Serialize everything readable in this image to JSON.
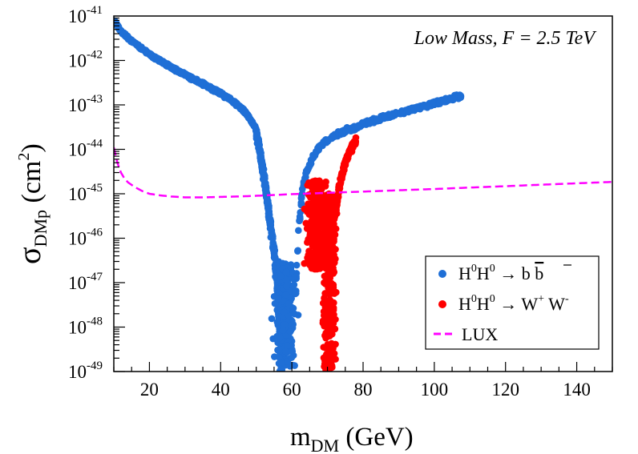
{
  "chart_data": {
    "type": "scatter",
    "xlabel": {
      "main": "m",
      "sub": "DM",
      "rest": " (GeV)"
    },
    "ylabel": {
      "main": "σ",
      "sub": "DMp",
      "rest1": " (cm",
      "sup": "2",
      "rest2": ")"
    },
    "xlim": [
      10,
      150
    ],
    "ylim": [
      1e-49,
      1e-41
    ],
    "y_scale": "log",
    "grid": false,
    "x_ticks": [
      "20",
      "40",
      "60",
      "80",
      "100",
      "120",
      "140"
    ],
    "x_tick_values": [
      20,
      40,
      60,
      80,
      100,
      120,
      140
    ],
    "y_tick_exponents": [
      "-49",
      "-48",
      "-47",
      "-46",
      "-45",
      "-44",
      "-43",
      "-42",
      "-41"
    ],
    "y_tick_base": "10",
    "annotation": "Low Mass, F = 2.5 TeV",
    "legend_position": "bottom-right",
    "legend": [
      {
        "label": "H⁰H⁰ → b b̄",
        "parts": [
          "H",
          "0",
          "H",
          "0",
          " → b ",
          "b"
        ],
        "type": "marker",
        "color": "#1f6fd6"
      },
      {
        "label": "H⁰H⁰ → W⁺ W⁻",
        "parts": [
          "H",
          "0",
          "H",
          "0",
          " → W",
          "+",
          " W",
          "-"
        ],
        "type": "marker",
        "color": "#ff0000"
      },
      {
        "label": "LUX",
        "parts": [
          "LUX"
        ],
        "type": "dashed-line",
        "color": "#ff00ff"
      }
    ],
    "series": [
      {
        "name": "H⁰H⁰ → b b̄",
        "color": "#1f6fd6",
        "main_branch": {
          "x": [
            10,
            11,
            12,
            14,
            16,
            18,
            20,
            22,
            25,
            28,
            30,
            33,
            36,
            40,
            43,
            45,
            47,
            48,
            49,
            50
          ],
          "y": [
            8e-42,
            6e-42,
            4.5e-42,
            3.2e-42,
            2.4e-42,
            1.8e-42,
            1.4e-42,
            1.1e-42,
            8e-43,
            5.8e-43,
            4.8e-43,
            3.6e-43,
            2.7e-43,
            1.8e-43,
            1.3e-43,
            9.5e-44,
            6.8e-44,
            5.2e-44,
            3.8e-44,
            2.8e-44
          ]
        },
        "dip_left": {
          "x": [
            50,
            51,
            52,
            53,
            54,
            55,
            56,
            57
          ],
          "y": [
            2.5e-44,
            1e-44,
            3e-45,
            8e-46,
            2e-46,
            5e-47,
            1e-47,
            2e-49
          ]
        },
        "scatter_region": {
          "x_range": [
            54,
            62
          ],
          "y_range": [
            1e-49,
            3e-47
          ]
        },
        "rise_right": {
          "x": [
            61,
            62,
            63,
            64,
            66,
            68,
            70,
            72,
            75,
            78,
            80,
            85,
            90,
            95,
            100,
            105,
            108
          ],
          "y": [
            5e-48,
            2e-46,
            1.2e-45,
            3e-45,
            7e-45,
            1.2e-44,
            1.6e-44,
            2e-44,
            2.6e-44,
            3.1e-44,
            3.8e-44,
            5e-44,
            6.5e-44,
            8.5e-44,
            1.1e-43,
            1.4e-43,
            1.6e-43
          ]
        }
      },
      {
        "name": "H⁰H⁰ → W⁺ W⁻",
        "color": "#ff0000",
        "scatter_region_a": {
          "x_range": [
            63,
            71
          ],
          "y_range": [
            2e-47,
            2e-45
          ]
        },
        "column_b": {
          "x_range": [
            68,
            73
          ],
          "y_range": [
            1e-49,
            1e-45
          ]
        },
        "upper_branch": {
          "x": [
            72,
            73,
            74,
            75,
            76,
            77,
            78
          ],
          "y": [
            3e-46,
            1e-45,
            2.5e-45,
            5e-45,
            8e-45,
            1.2e-44,
            1.6e-44
          ]
        }
      },
      {
        "name": "LUX",
        "color": "#ff00ff",
        "style": "dashed",
        "x": [
          10,
          11,
          12,
          13,
          14,
          16,
          18,
          20,
          23,
          26,
          30,
          35,
          40,
          45,
          50,
          55,
          60,
          70,
          80,
          90,
          100,
          110,
          120,
          130,
          140,
          150
        ],
        "y": [
          1.1e-44,
          5e-45,
          3e-45,
          2.2e-45,
          1.8e-45,
          1.4e-45,
          1.15e-45,
          1e-45,
          9.2e-46,
          8.7e-46,
          8.3e-46,
          8.3e-46,
          8.5e-46,
          8.7e-46,
          9e-46,
          9.4e-46,
          9.8e-46,
          1.05e-45,
          1.12e-45,
          1.2e-45,
          1.28e-45,
          1.38e-45,
          1.48e-45,
          1.6e-45,
          1.72e-45,
          1.85e-45
        ]
      }
    ]
  }
}
